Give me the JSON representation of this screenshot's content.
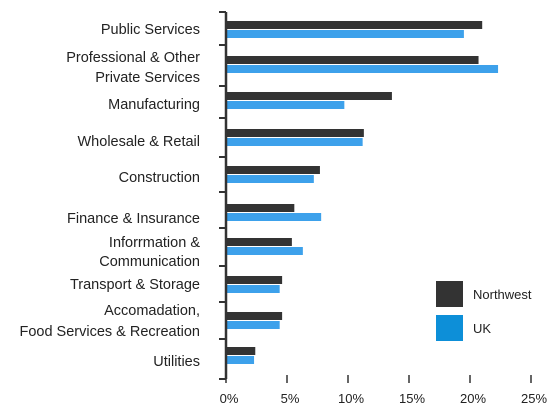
{
  "chart_data": {
    "type": "bar",
    "orientation": "horizontal",
    "categories": [
      [
        "Public Services"
      ],
      [
        "Professional & Other",
        "Private Services"
      ],
      [
        "Manufacturing"
      ],
      [
        "Wholesale & Retail"
      ],
      [
        "Construction"
      ],
      [
        "Finance & Insurance"
      ],
      [
        "Inforrmation &",
        "Communication"
      ],
      [
        "Transport & Storage"
      ],
      [
        "Accomadation,",
        "Food Services & Recreation"
      ],
      [
        "Utilities"
      ]
    ],
    "series": [
      {
        "name": "Northwest",
        "color": "#333333",
        "values": [
          21.0,
          20.7,
          13.6,
          11.3,
          7.7,
          5.6,
          5.4,
          4.6,
          4.6,
          2.4
        ]
      },
      {
        "name": "UK",
        "color": "#3da1eb",
        "values": [
          19.5,
          22.3,
          9.7,
          11.2,
          7.2,
          7.8,
          6.3,
          4.4,
          4.4,
          2.3
        ]
      }
    ],
    "xlim": [
      0,
      25
    ],
    "x_ticks": [
      "0%",
      "5%",
      "10%",
      "15%",
      "20%",
      "25%"
    ],
    "grid": false,
    "legend_position": "right"
  }
}
